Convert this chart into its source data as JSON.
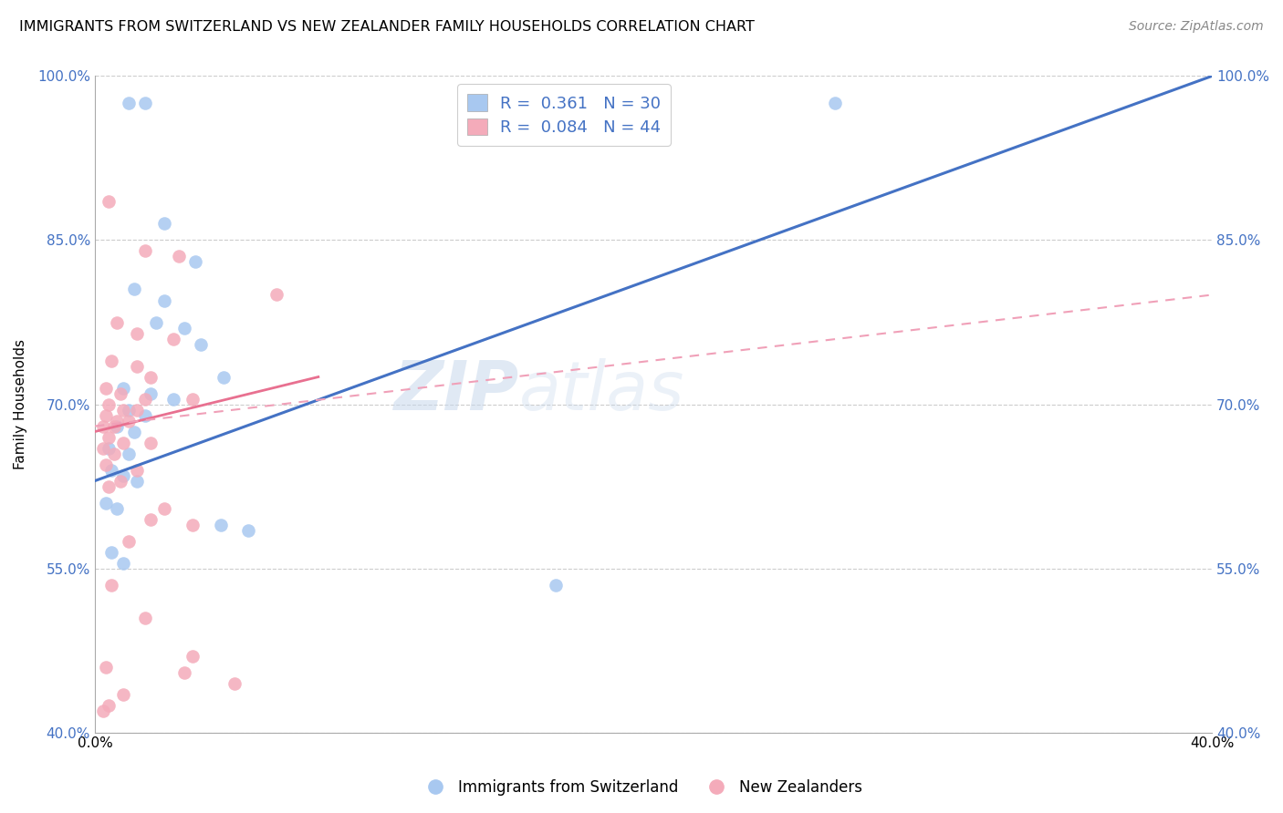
{
  "title": "IMMIGRANTS FROM SWITZERLAND VS NEW ZEALANDER FAMILY HOUSEHOLDS CORRELATION CHART",
  "source": "Source: ZipAtlas.com",
  "ylabel": "Family Households",
  "x_min": 0.0,
  "x_max": 40.0,
  "y_min": 40.0,
  "y_max": 100.0,
  "y_ticks": [
    40.0,
    55.0,
    70.0,
    85.0,
    100.0
  ],
  "x_ticks": [
    0.0,
    40.0
  ],
  "r_blue": 0.361,
  "n_blue": 30,
  "r_pink": 0.084,
  "n_pink": 44,
  "blue_color": "#A8C8F0",
  "pink_color": "#F4ABBA",
  "blue_line_color": "#4472C4",
  "pink_line_color": "#E87090",
  "pink_dash_color": "#F0A0B8",
  "watermark_zip": "ZIP",
  "watermark_atlas": "atlas",
  "legend_label_blue": "Immigrants from Switzerland",
  "legend_label_pink": "New Zealanders",
  "blue_line": [
    [
      0.0,
      63.0
    ],
    [
      40.0,
      100.0
    ]
  ],
  "pink_solid_line": [
    [
      0.0,
      67.5
    ],
    [
      8.0,
      72.5
    ]
  ],
  "pink_dash_line": [
    [
      0.0,
      68.0
    ],
    [
      40.0,
      80.0
    ]
  ],
  "blue_scatter": [
    [
      1.2,
      97.5
    ],
    [
      1.8,
      97.5
    ],
    [
      26.5,
      97.5
    ],
    [
      2.5,
      86.5
    ],
    [
      3.6,
      83.0
    ],
    [
      1.4,
      80.5
    ],
    [
      2.5,
      79.5
    ],
    [
      2.2,
      77.5
    ],
    [
      3.2,
      77.0
    ],
    [
      3.8,
      75.5
    ],
    [
      4.6,
      72.5
    ],
    [
      1.0,
      71.5
    ],
    [
      2.0,
      71.0
    ],
    [
      2.8,
      70.5
    ],
    [
      1.2,
      69.5
    ],
    [
      1.8,
      69.0
    ],
    [
      0.8,
      68.0
    ],
    [
      1.4,
      67.5
    ],
    [
      0.5,
      66.0
    ],
    [
      1.2,
      65.5
    ],
    [
      0.6,
      64.0
    ],
    [
      1.0,
      63.5
    ],
    [
      1.5,
      63.0
    ],
    [
      0.4,
      61.0
    ],
    [
      0.8,
      60.5
    ],
    [
      4.5,
      59.0
    ],
    [
      5.5,
      58.5
    ],
    [
      0.6,
      56.5
    ],
    [
      1.0,
      55.5
    ],
    [
      16.5,
      53.5
    ]
  ],
  "pink_scatter": [
    [
      0.5,
      88.5
    ],
    [
      1.8,
      84.0
    ],
    [
      3.0,
      83.5
    ],
    [
      6.5,
      80.0
    ],
    [
      0.8,
      77.5
    ],
    [
      1.5,
      76.5
    ],
    [
      2.8,
      76.0
    ],
    [
      0.6,
      74.0
    ],
    [
      1.5,
      73.5
    ],
    [
      2.0,
      72.5
    ],
    [
      0.4,
      71.5
    ],
    [
      0.9,
      71.0
    ],
    [
      1.8,
      70.5
    ],
    [
      3.5,
      70.5
    ],
    [
      0.5,
      70.0
    ],
    [
      1.0,
      69.5
    ],
    [
      1.5,
      69.5
    ],
    [
      0.4,
      69.0
    ],
    [
      0.8,
      68.5
    ],
    [
      1.2,
      68.5
    ],
    [
      0.3,
      68.0
    ],
    [
      0.7,
      68.0
    ],
    [
      0.5,
      67.0
    ],
    [
      1.0,
      66.5
    ],
    [
      2.0,
      66.5
    ],
    [
      0.3,
      66.0
    ],
    [
      0.7,
      65.5
    ],
    [
      1.5,
      64.0
    ],
    [
      0.5,
      62.5
    ],
    [
      2.0,
      59.5
    ],
    [
      3.5,
      59.0
    ],
    [
      0.6,
      53.5
    ],
    [
      1.8,
      50.5
    ],
    [
      3.5,
      47.0
    ],
    [
      0.4,
      46.0
    ],
    [
      5.0,
      44.5
    ],
    [
      1.0,
      43.5
    ],
    [
      0.5,
      42.5
    ],
    [
      0.3,
      42.0
    ],
    [
      3.2,
      45.5
    ],
    [
      0.4,
      64.5
    ],
    [
      0.9,
      63.0
    ],
    [
      2.5,
      60.5
    ],
    [
      1.2,
      57.5
    ]
  ]
}
